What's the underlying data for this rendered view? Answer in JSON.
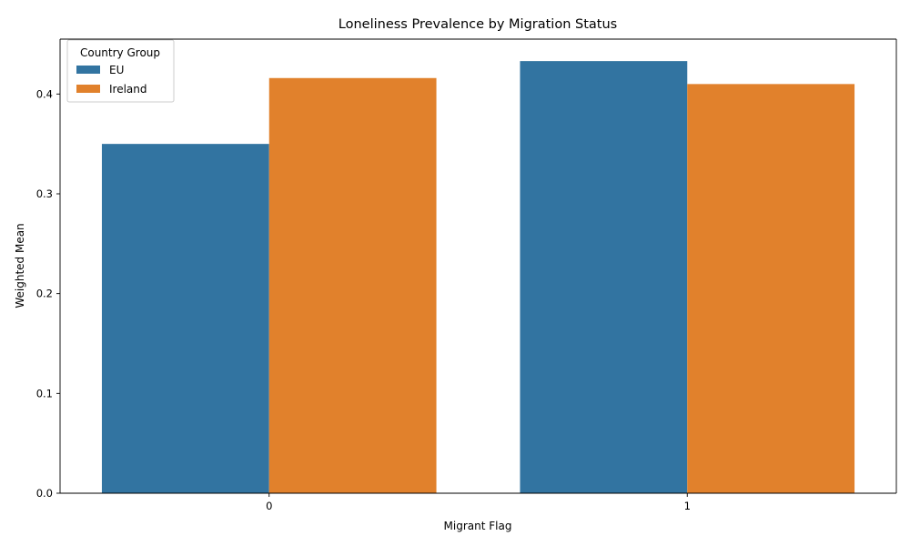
{
  "chart_data": {
    "type": "bar",
    "title": "Loneliness Prevalence by Migration Status",
    "xlabel": "Migrant Flag",
    "ylabel": "Weighted Mean",
    "categories": [
      "0",
      "1"
    ],
    "series": [
      {
        "name": "EU",
        "values": [
          0.35,
          0.433
        ],
        "color": "#3274a1"
      },
      {
        "name": "Ireland",
        "values": [
          0.416,
          0.41
        ],
        "color": "#e1812c"
      }
    ],
    "ylim": [
      0,
      0.455
    ],
    "yticks": [
      0.0,
      0.1,
      0.2,
      0.3,
      0.4
    ],
    "ytick_labels": [
      "0.0",
      "0.1",
      "0.2",
      "0.3",
      "0.4"
    ],
    "grid": false,
    "legend": {
      "title": "Country Group",
      "placement": "top-left"
    }
  }
}
